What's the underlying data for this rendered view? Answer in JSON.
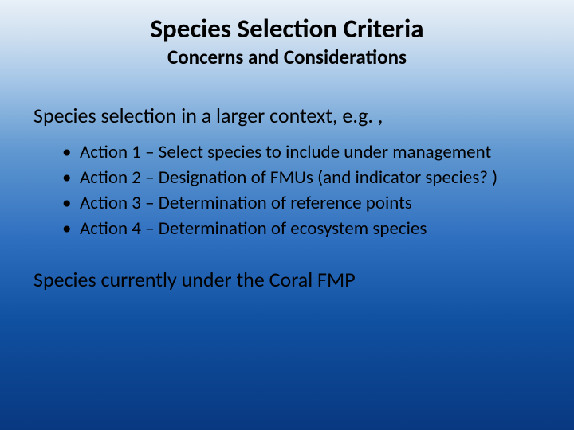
{
  "slide": {
    "title": "Species Selection Criteria",
    "subtitle": "Concerns and Considerations",
    "section_heading": "Species selection in a larger context, e.g. ,",
    "bullets": [
      "Action 1 – Select species to include under management",
      "Action 2 – Designation of FMUs (and indicator species? )",
      "Action 3 – Determination of reference points",
      "Action 4 – Determination of ecosystem species"
    ],
    "footer_heading": "Species currently under the Coral FMP"
  },
  "style": {
    "background_gradient_stops": [
      "#e8f0f8",
      "#d0e0f0",
      "#a8c8e8",
      "#6098d0",
      "#3070c0",
      "#1050a0",
      "#083880"
    ],
    "title_color": "#000000",
    "title_fontsize": 33,
    "title_fontweight": 700,
    "subtitle_color": "#000000",
    "subtitle_fontsize": 25,
    "subtitle_fontweight": 700,
    "heading_color": "#000000",
    "heading_fontsize": 26,
    "heading_fontweight": 400,
    "bullet_color": "#000000",
    "bullet_fontsize": 23,
    "bullet_fontweight": 400,
    "font_family": "Calibri",
    "slide_width": 720,
    "slide_height": 540
  }
}
